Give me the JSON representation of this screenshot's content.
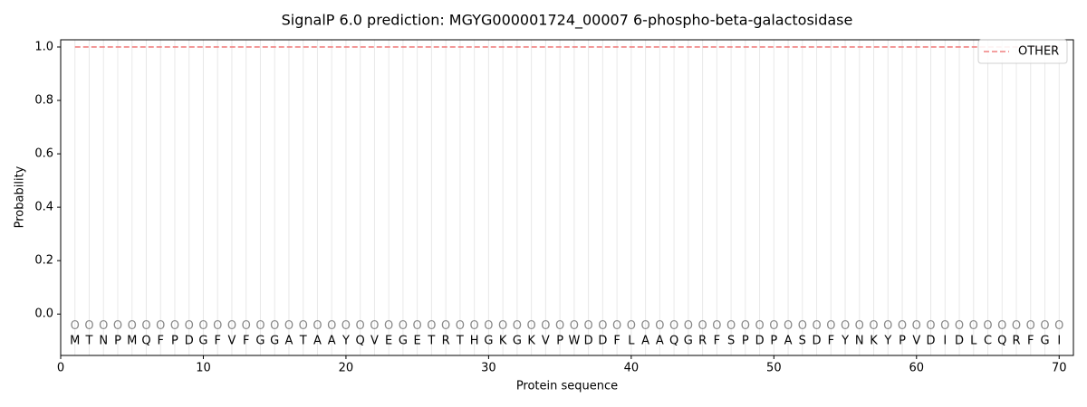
{
  "chart_data": {
    "type": "line",
    "title": "SignalP 6.0 prediction: MGYG000001724_00007 6-phospho-beta-galactosidase",
    "x_label": "Protein sequence",
    "y_label": "Probability",
    "x": [
      1,
      2,
      3,
      4,
      5,
      6,
      7,
      8,
      9,
      10,
      11,
      12,
      13,
      14,
      15,
      16,
      17,
      18,
      19,
      20,
      21,
      22,
      23,
      24,
      25,
      26,
      27,
      28,
      29,
      30,
      31,
      32,
      33,
      34,
      35,
      36,
      37,
      38,
      39,
      40,
      41,
      42,
      43,
      44,
      45,
      46,
      47,
      48,
      49,
      50,
      51,
      52,
      53,
      54,
      55,
      56,
      57,
      58,
      59,
      60,
      61,
      62,
      63,
      64,
      65,
      66,
      67,
      68,
      69,
      70
    ],
    "series": [
      {
        "name": "OTHER",
        "color": "#f08080",
        "values": [
          1.0,
          1.0,
          1.0,
          1.0,
          1.0,
          1.0,
          1.0,
          1.0,
          1.0,
          1.0,
          1.0,
          1.0,
          1.0,
          1.0,
          1.0,
          1.0,
          1.0,
          1.0,
          1.0,
          1.0,
          1.0,
          1.0,
          1.0,
          1.0,
          1.0,
          1.0,
          1.0,
          1.0,
          1.0,
          1.0,
          1.0,
          1.0,
          1.0,
          1.0,
          1.0,
          1.0,
          1.0,
          1.0,
          1.0,
          1.0,
          1.0,
          1.0,
          1.0,
          1.0,
          1.0,
          1.0,
          1.0,
          1.0,
          1.0,
          1.0,
          1.0,
          1.0,
          1.0,
          1.0,
          1.0,
          1.0,
          1.0,
          1.0,
          1.0,
          1.0,
          1.0,
          1.0,
          1.0,
          1.0,
          1.0,
          1.0,
          1.0,
          1.0,
          1.0,
          1.0
        ]
      }
    ],
    "predictions": [
      "O",
      "O",
      "O",
      "O",
      "O",
      "O",
      "O",
      "O",
      "O",
      "O",
      "O",
      "O",
      "O",
      "O",
      "O",
      "O",
      "O",
      "O",
      "O",
      "O",
      "O",
      "O",
      "O",
      "O",
      "O",
      "O",
      "O",
      "O",
      "O",
      "O",
      "O",
      "O",
      "O",
      "O",
      "O",
      "O",
      "O",
      "O",
      "O",
      "O",
      "O",
      "O",
      "O",
      "O",
      "O",
      "O",
      "O",
      "O",
      "O",
      "O",
      "O",
      "O",
      "O",
      "O",
      "O",
      "O",
      "O",
      "O",
      "O",
      "O",
      "O",
      "O",
      "O",
      "O",
      "O",
      "O",
      "O",
      "O",
      "O",
      "O"
    ],
    "residues": [
      "M",
      "T",
      "N",
      "P",
      "M",
      "Q",
      "F",
      "P",
      "D",
      "G",
      "F",
      "V",
      "F",
      "G",
      "G",
      "A",
      "T",
      "A",
      "A",
      "Y",
      "Q",
      "V",
      "E",
      "G",
      "E",
      "T",
      "R",
      "T",
      "H",
      "G",
      "K",
      "G",
      "K",
      "V",
      "P",
      "W",
      "D",
      "D",
      "F",
      "L",
      "A",
      "A",
      "Q",
      "G",
      "R",
      "F",
      "S",
      "P",
      "D",
      "P",
      "A",
      "S",
      "D",
      "F",
      "Y",
      "N",
      "K",
      "Y",
      "P",
      "V",
      "D",
      "I",
      "D",
      "L",
      "C",
      "Q",
      "R",
      "F",
      "G",
      "I"
    ],
    "xlim": [
      0,
      71
    ],
    "ylim": [
      -0.155,
      1.027
    ],
    "xticks": [
      0,
      10,
      20,
      30,
      40,
      50,
      60,
      70
    ],
    "yticks": [
      {
        "value": 0,
        "label": "0.0"
      },
      {
        "value": 0.2,
        "label": "0.2"
      },
      {
        "value": 0.4,
        "label": "0.4"
      },
      {
        "value": 0.6,
        "label": "0.6"
      },
      {
        "value": 0.8,
        "label": "0.8"
      },
      {
        "value": 1.0,
        "label": "1.0"
      }
    ],
    "legend": "upper right"
  }
}
